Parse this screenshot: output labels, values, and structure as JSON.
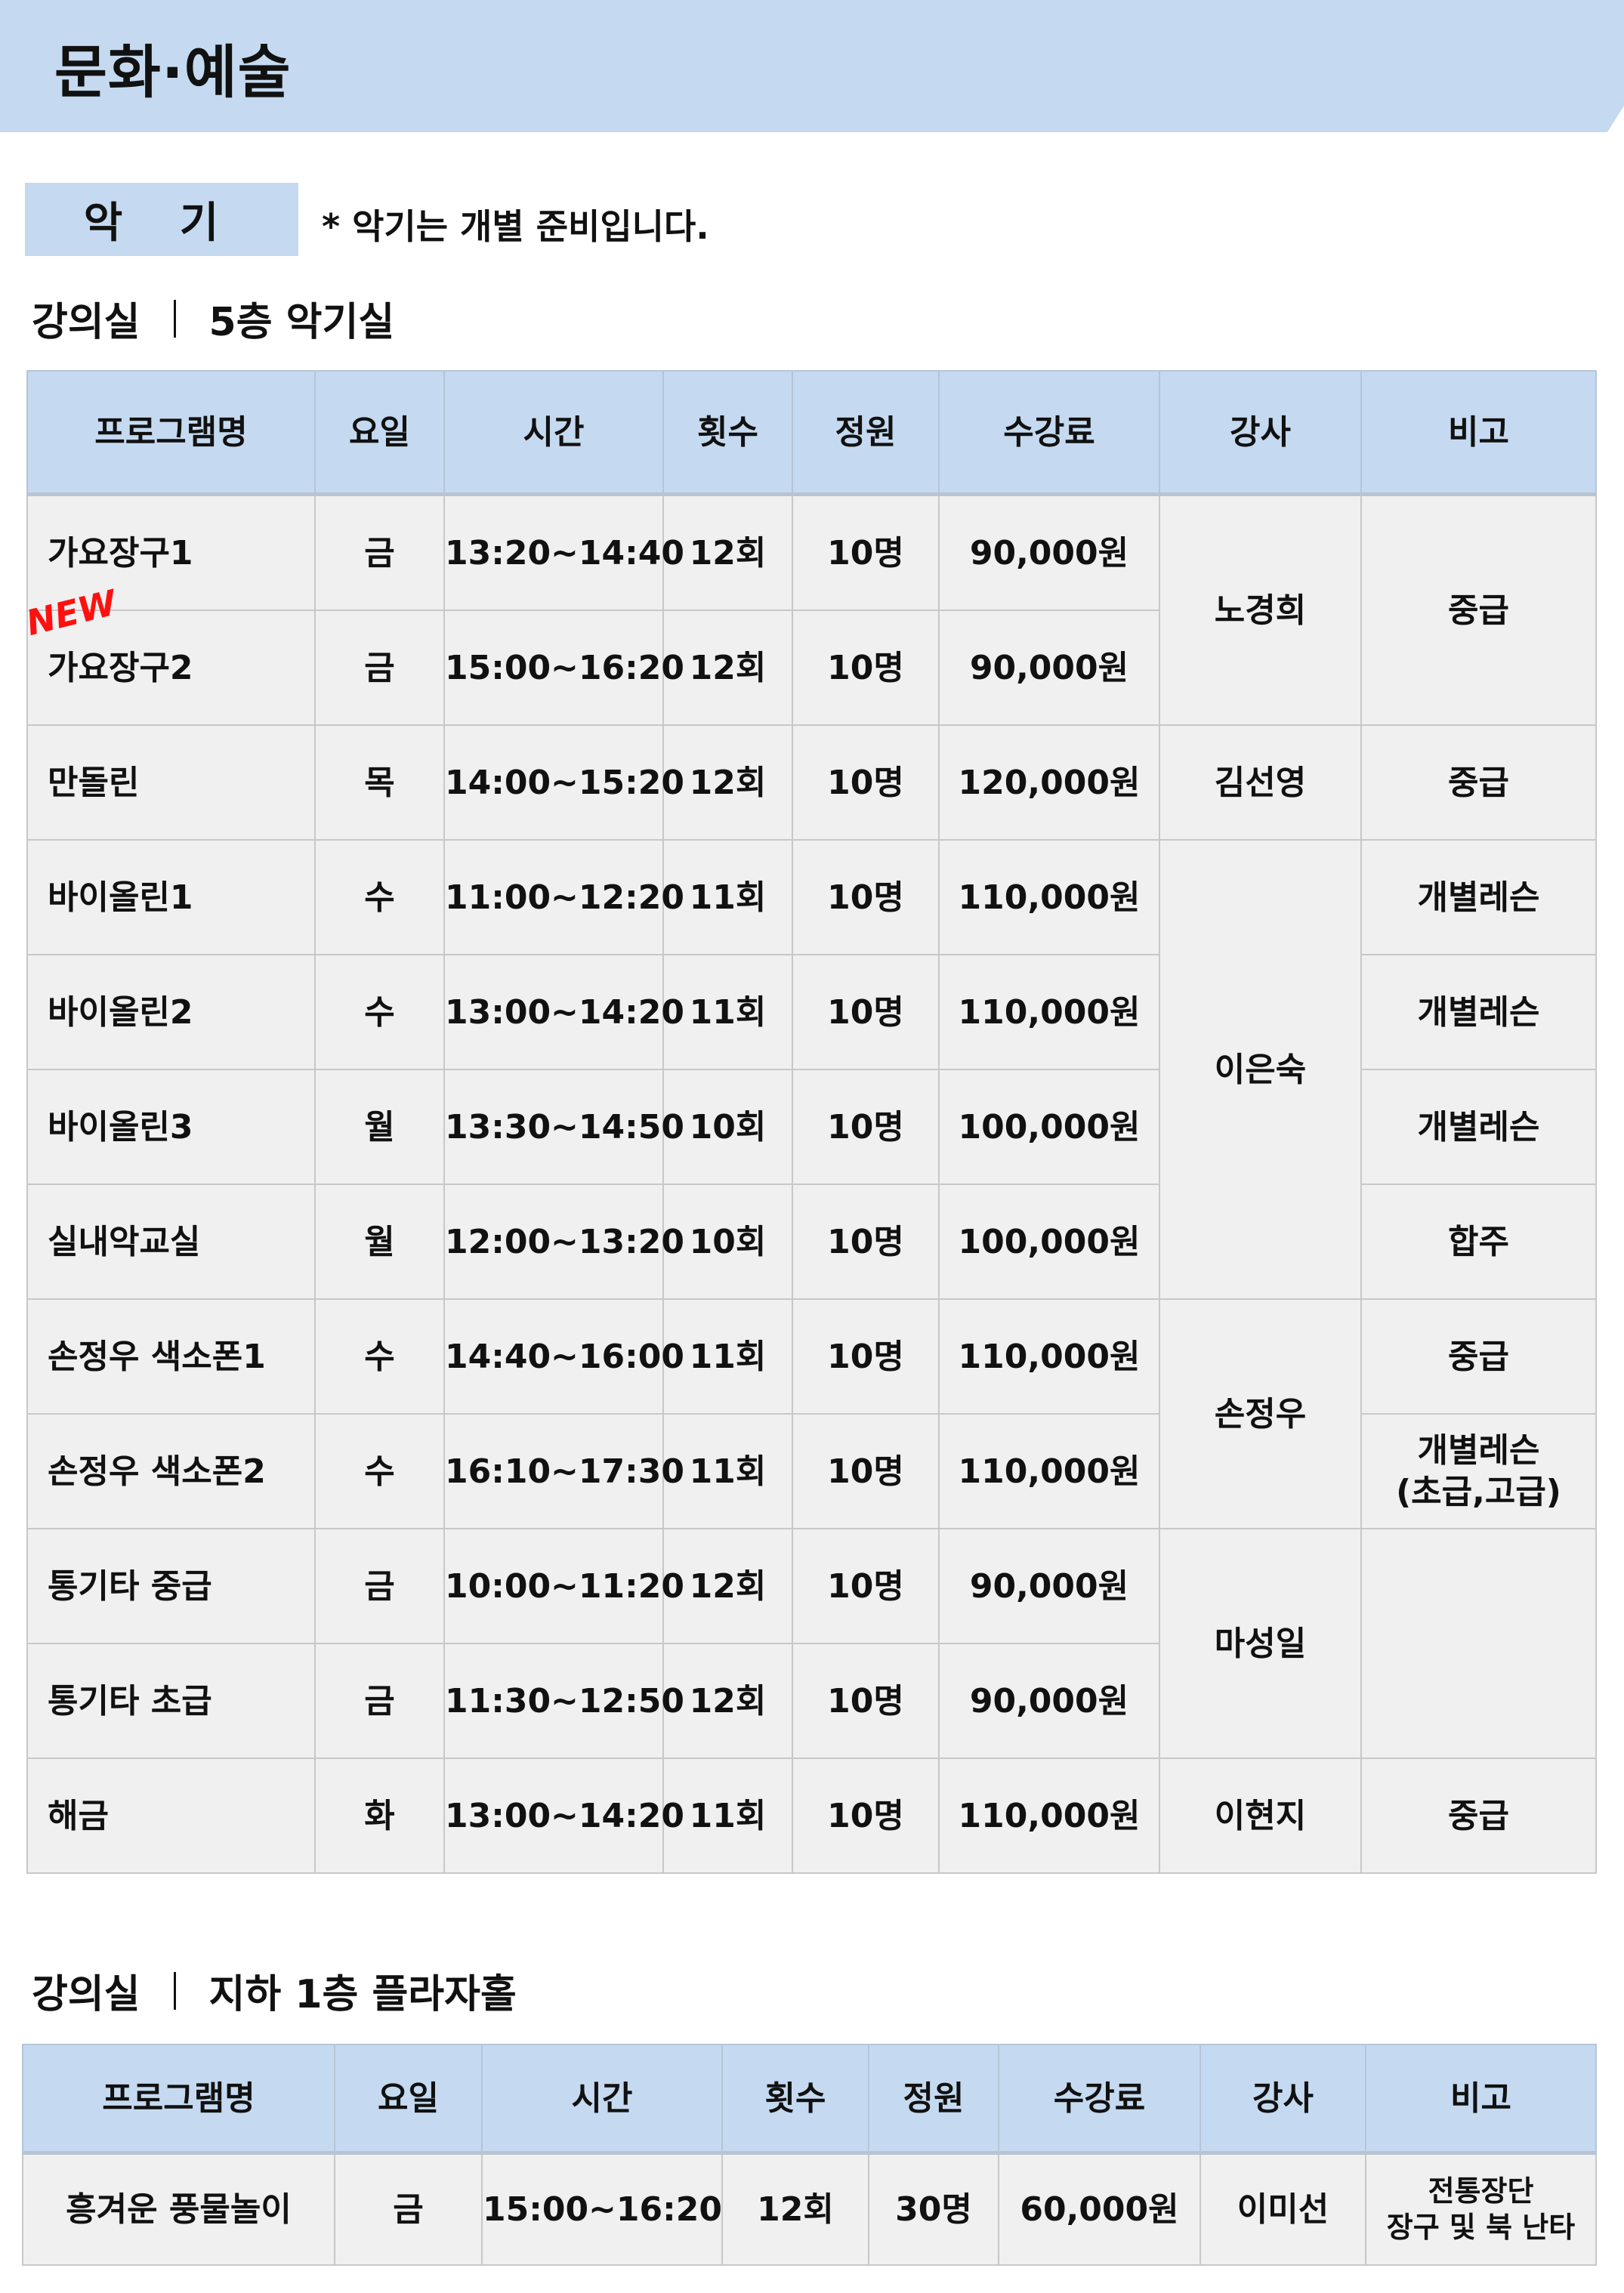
{
  "header": {
    "title": "문화·예술"
  },
  "category": {
    "label": "악 기",
    "note": "* 악기는 개별 준비입니다."
  },
  "section1": {
    "room_label": "강의실",
    "room_name": "5층 악기실",
    "columns": [
      "프로그램명",
      "요일",
      "시간",
      "횟수",
      "정원",
      "수강료",
      "강사",
      "비고"
    ],
    "badge_new": "NEW",
    "rows": [
      {
        "program": "가요장구1",
        "day": "금",
        "time": "13:20~14:40",
        "sessions": "12회",
        "capacity": "10명",
        "fee": "90,000원"
      },
      {
        "program": "가요장구2",
        "day": "금",
        "time": "15:00~16:20",
        "sessions": "12회",
        "capacity": "10명",
        "fee": "90,000원",
        "is_new": true
      },
      {
        "program": "만돌린",
        "day": "목",
        "time": "14:00~15:20",
        "sessions": "12회",
        "capacity": "10명",
        "fee": "120,000원"
      },
      {
        "program": "바이올린1",
        "day": "수",
        "time": "11:00~12:20",
        "sessions": "11회",
        "capacity": "10명",
        "fee": "110,000원"
      },
      {
        "program": "바이올린2",
        "day": "수",
        "time": "13:00~14:20",
        "sessions": "11회",
        "capacity": "10명",
        "fee": "110,000원"
      },
      {
        "program": "바이올린3",
        "day": "월",
        "time": "13:30~14:50",
        "sessions": "10회",
        "capacity": "10명",
        "fee": "100,000원"
      },
      {
        "program": "실내악교실",
        "day": "월",
        "time": "12:00~13:20",
        "sessions": "10회",
        "capacity": "10명",
        "fee": "100,000원"
      },
      {
        "program": "손정우 색소폰1",
        "day": "수",
        "time": "14:40~16:00",
        "sessions": "11회",
        "capacity": "10명",
        "fee": "110,000원"
      },
      {
        "program": "손정우 색소폰2",
        "day": "수",
        "time": "16:10~17:30",
        "sessions": "11회",
        "capacity": "10명",
        "fee": "110,000원"
      },
      {
        "program": "통기타 중급",
        "day": "금",
        "time": "10:00~11:20",
        "sessions": "12회",
        "capacity": "10명",
        "fee": "90,000원"
      },
      {
        "program": "통기타 초급",
        "day": "금",
        "time": "11:30~12:50",
        "sessions": "12회",
        "capacity": "10명",
        "fee": "90,000원"
      },
      {
        "program": "해금",
        "day": "화",
        "time": "13:00~14:20",
        "sessions": "11회",
        "capacity": "10명",
        "fee": "110,000원"
      }
    ],
    "instructors": [
      {
        "name": "노경희",
        "span": 2
      },
      {
        "name": "김선영",
        "span": 1
      },
      {
        "name": "이은숙",
        "span": 4
      },
      {
        "name": "손정우",
        "span": 2
      },
      {
        "name": "마성일",
        "span": 2
      },
      {
        "name": "이현지",
        "span": 1
      }
    ],
    "remarks": [
      {
        "text": "중급",
        "span": 2
      },
      {
        "text": "중급",
        "span": 1
      },
      {
        "text": "개별레슨",
        "span": 1
      },
      {
        "text": "개별레슨",
        "span": 1
      },
      {
        "text": "개별레슨",
        "span": 1
      },
      {
        "text": "합주",
        "span": 1
      },
      {
        "text": "중급",
        "span": 1
      },
      {
        "text": "개별레슨\n(초급,고급)",
        "span": 1
      },
      {
        "text": "",
        "span": 2
      },
      {
        "text": "중급",
        "span": 1
      }
    ]
  },
  "section2": {
    "room_label": "강의실",
    "room_name": "지하 1층 플라자홀",
    "columns": [
      "프로그램명",
      "요일",
      "시간",
      "횟수",
      "정원",
      "수강료",
      "강사",
      "비고"
    ],
    "rows": [
      {
        "program": "흥겨운 풍물놀이",
        "day": "금",
        "time": "15:00~16:20",
        "sessions": "12회",
        "capacity": "30명",
        "fee": "60,000원",
        "instructor": "이미선",
        "remark": "전통장단\n장구 및 북 난타"
      }
    ]
  },
  "colors": {
    "header_bg": "#c5daf0",
    "cell_bg": "#f0f0f0",
    "new_badge": "#ff1010"
  }
}
